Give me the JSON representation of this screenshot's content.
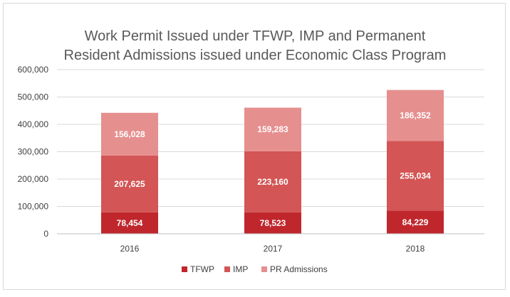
{
  "chart_data": {
    "type": "bar",
    "stacked": true,
    "title_lines": [
      "Work Permit Issued under TFWP, IMP and Permanent",
      "Resident Admissions issued under Economic Class Program"
    ],
    "xlabel": "",
    "ylabel": "",
    "categories": [
      "2016",
      "2017",
      "2018"
    ],
    "ylim": [
      0,
      600000
    ],
    "yticks": [
      0,
      100000,
      200000,
      300000,
      400000,
      500000,
      600000
    ],
    "ytick_labels": [
      "0",
      "100,000",
      "200,000",
      "300,000",
      "400,000",
      "500,000",
      "600,000"
    ],
    "grid": true,
    "legend_position": "bottom",
    "series": [
      {
        "name": "TFWP",
        "color": "#c0272d",
        "values": [
          78454,
          78523,
          84229
        ],
        "labels": [
          "78,454",
          "78,523",
          "84,229"
        ]
      },
      {
        "name": "IMP",
        "color": "#d35555",
        "values": [
          207625,
          223160,
          255034
        ],
        "labels": [
          "207,625",
          "223,160",
          "255,034"
        ]
      },
      {
        "name": "PR Admissions",
        "color": "#e68f8f",
        "values": [
          156028,
          159283,
          186352
        ],
        "labels": [
          "156,028",
          "159,283",
          "186,352"
        ]
      }
    ]
  }
}
